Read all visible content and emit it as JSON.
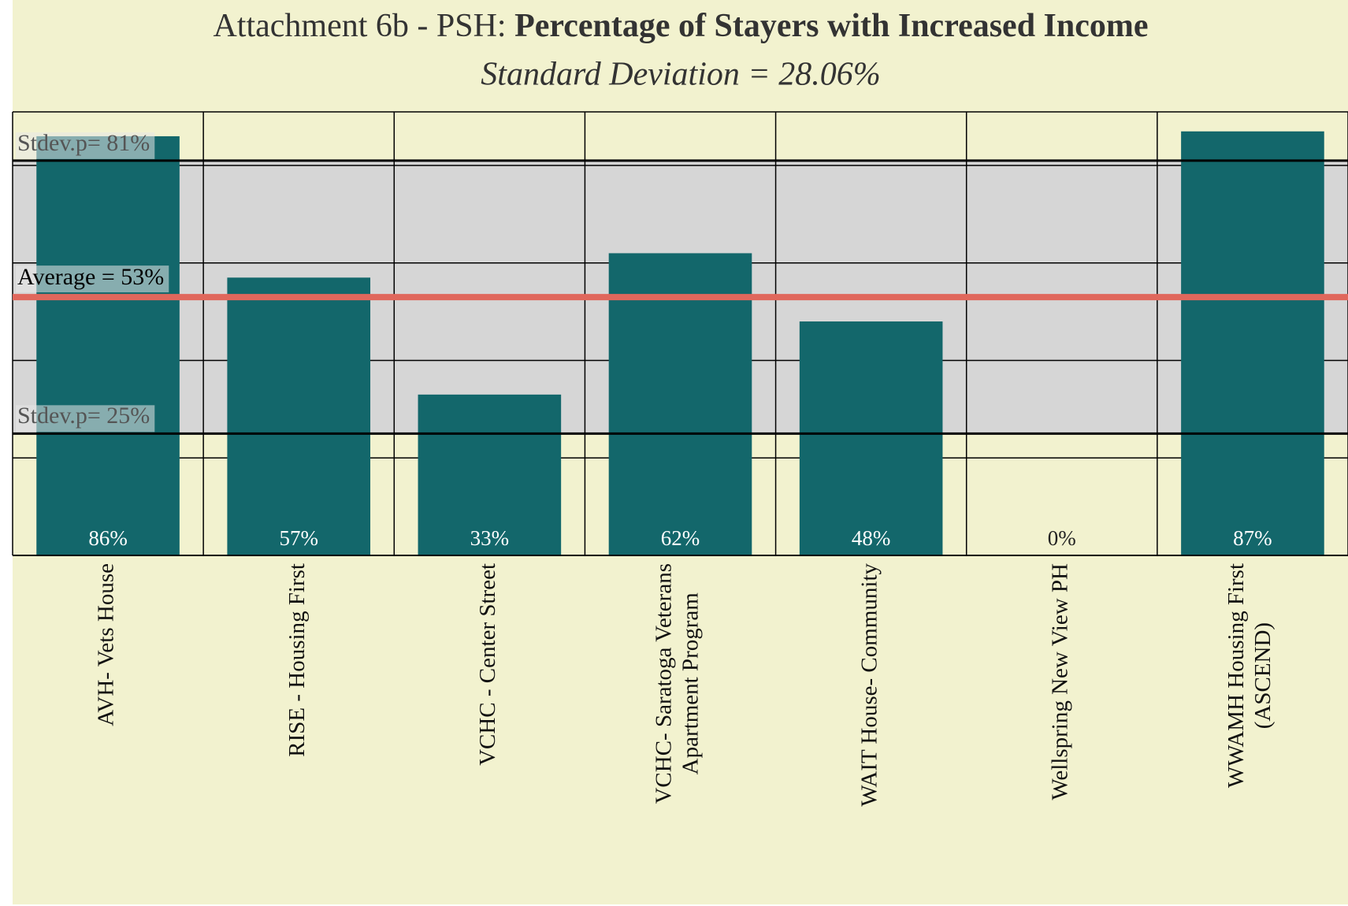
{
  "chart_data": {
    "type": "bar",
    "title": "Attachment 6b - PSH: ",
    "title_bold": "Percentage of Stayers with Increased Income",
    "subtitle": "Standard Deviation = 28.06%",
    "categories": [
      "AVH- Vets House",
      "RISE - Housing First",
      "VCHC - Center Street",
      "VCHC- Saratoga Veterans Apartment Program",
      "WAIT House- Community",
      "Wellspring New View PH",
      "WWAMH Housing First (ASCEND)"
    ],
    "values": [
      86,
      57,
      33,
      62,
      48,
      0,
      87
    ],
    "value_labels": [
      "86%",
      "57%",
      "33%",
      "62%",
      "48%",
      "0%",
      "87%"
    ],
    "color": "#13676b",
    "ylim": [
      0,
      91
    ],
    "ygrid": [
      20,
      40,
      60,
      80
    ],
    "grid": true,
    "annotations": [
      {
        "label": "Stdev.p= 81%",
        "value": 81
      },
      {
        "label": "Average = 53%",
        "value": 53
      },
      {
        "label": "Stdev.p= 25%",
        "value": 25
      }
    ]
  }
}
